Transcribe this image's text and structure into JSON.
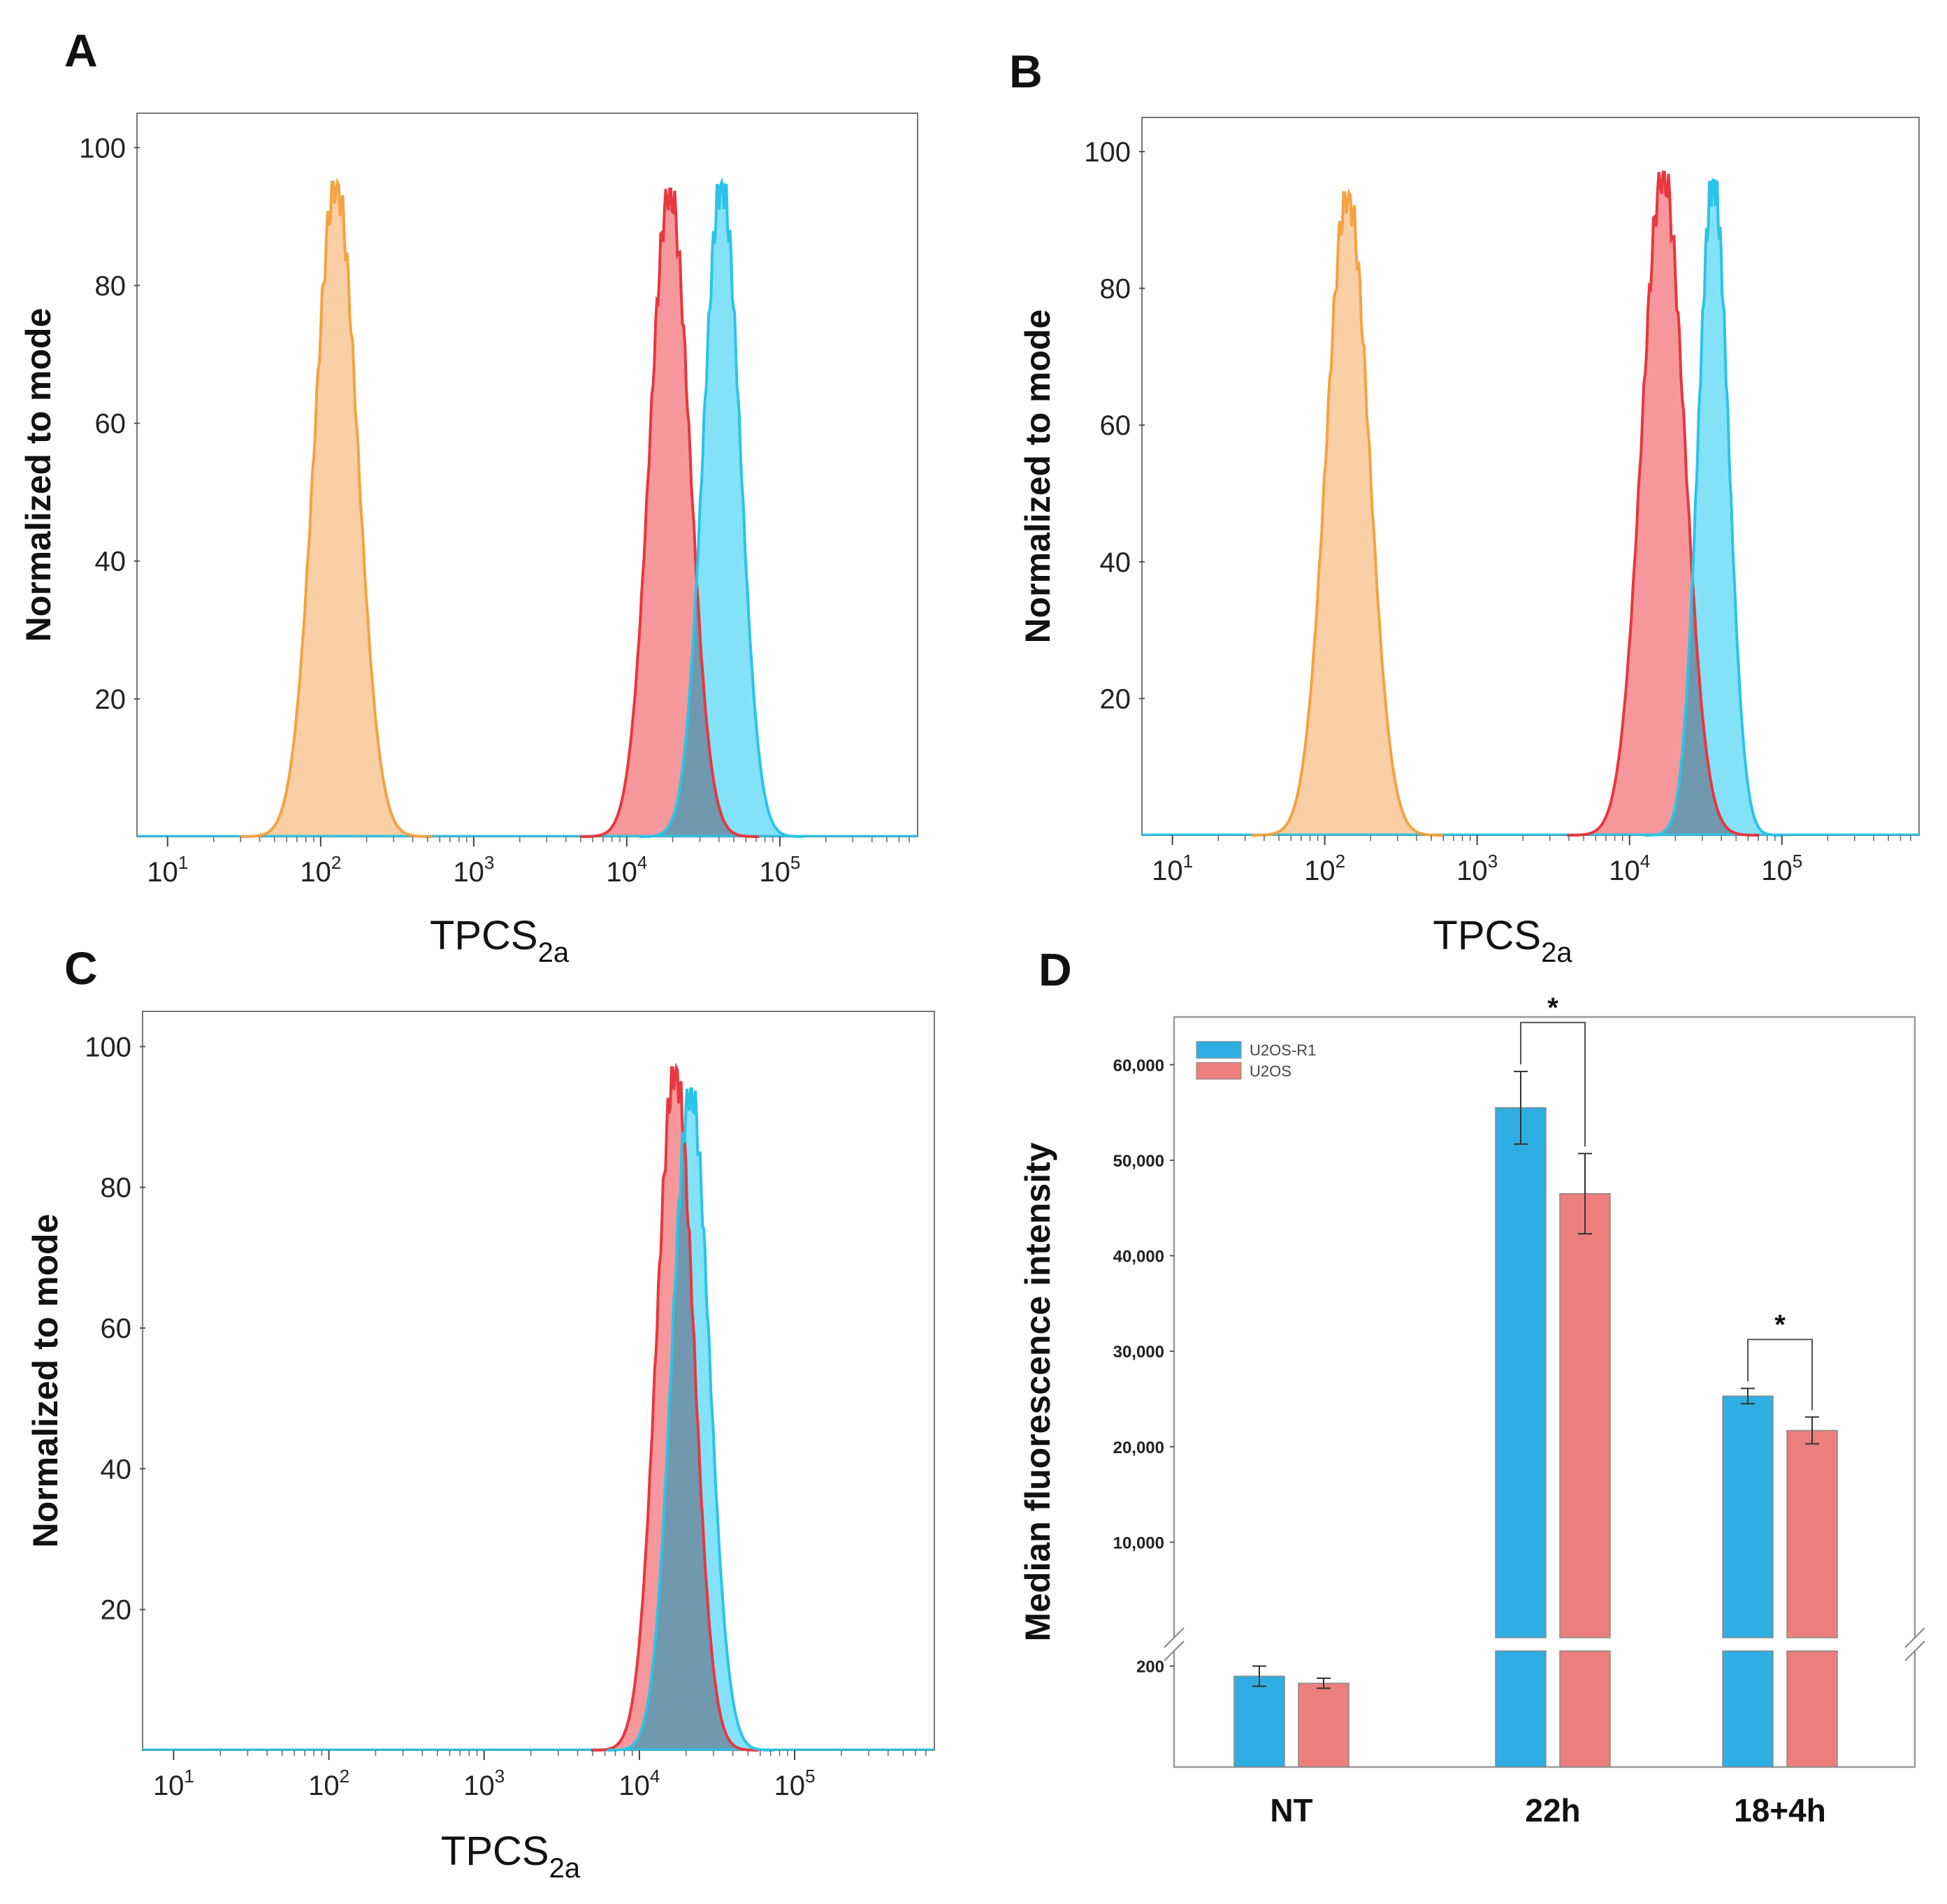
{
  "figure": {
    "panel_labels": [
      "A",
      "B",
      "C",
      "D"
    ]
  },
  "colors": {
    "orange_line": "#F4A340",
    "orange_fill": "#FAC796",
    "red_line": "#E8373F",
    "red_fill": "#F4868A",
    "blue_line": "#2BC4E8",
    "blue_fill": "#6FDDF7",
    "overlap_fill": "#6F93A8",
    "bar_blue": "#2EAEE2",
    "bar_red": "#EC7F7C"
  },
  "chart_data": [
    {
      "panel": "A",
      "type": "area",
      "title": "",
      "xlabel": "TPCS",
      "xlabel_sub": "2a",
      "ylabel": "Normalized to mode",
      "xscale": "log10",
      "xlim_log10": [
        0.8,
        5.9
      ],
      "ylim": [
        0,
        105
      ],
      "x_tick_labels": [
        {
          "base": "10",
          "exp": "1"
        },
        {
          "base": "10",
          "exp": "2"
        },
        {
          "base": "10",
          "exp": "3"
        },
        {
          "base": "10",
          "exp": "4"
        },
        {
          "base": "10",
          "exp": "5"
        }
      ],
      "x_tick_log10": [
        1,
        2,
        3,
        4,
        5
      ],
      "y_tick_labels": [
        "100",
        "80",
        "60",
        "40",
        "20"
      ],
      "y_ticks": [
        100,
        80,
        60,
        40,
        20
      ],
      "series": [
        {
          "name": "orange",
          "color_key": "orange",
          "peak_log10": 2.1,
          "sd_log10": 0.14,
          "peak": 95
        },
        {
          "name": "red",
          "color_key": "red",
          "peak_log10": 4.28,
          "sd_log10": 0.13,
          "peak": 94
        },
        {
          "name": "blue",
          "color_key": "blue",
          "peak_log10": 4.62,
          "sd_log10": 0.12,
          "peak": 95
        }
      ]
    },
    {
      "panel": "B",
      "type": "area",
      "title": "",
      "xlabel": "TPCS",
      "xlabel_sub": "2a",
      "ylabel": "Normalized to mode",
      "xscale": "log10",
      "xlim_log10": [
        0.8,
        5.9
      ],
      "ylim": [
        0,
        105
      ],
      "x_tick_labels": [
        {
          "base": "10",
          "exp": "1"
        },
        {
          "base": "10",
          "exp": "2"
        },
        {
          "base": "10",
          "exp": "3"
        },
        {
          "base": "10",
          "exp": "4"
        },
        {
          "base": "10",
          "exp": "5"
        }
      ],
      "x_tick_log10": [
        1,
        2,
        3,
        4,
        5
      ],
      "y_tick_labels": [
        "100",
        "80",
        "60",
        "40",
        "20"
      ],
      "y_ticks": [
        100,
        80,
        60,
        40,
        20
      ],
      "series": [
        {
          "name": "orange",
          "color_key": "orange",
          "peak_log10": 2.15,
          "sd_log10": 0.14,
          "peak": 94
        },
        {
          "name": "red",
          "color_key": "red",
          "peak_log10": 4.22,
          "sd_log10": 0.14,
          "peak": 97
        },
        {
          "name": "blue",
          "color_key": "blue",
          "peak_log10": 4.55,
          "sd_log10": 0.1,
          "peak": 96
        }
      ]
    },
    {
      "panel": "C",
      "type": "area",
      "title": "",
      "xlabel": "TPCS",
      "xlabel_sub": "2a",
      "ylabel": "Normalized to mode",
      "xscale": "log10",
      "xlim_log10": [
        0.8,
        5.9
      ],
      "ylim": [
        0,
        105
      ],
      "x_tick_labels": [
        {
          "base": "10",
          "exp": "1"
        },
        {
          "base": "10",
          "exp": "2"
        },
        {
          "base": "10",
          "exp": "3"
        },
        {
          "base": "10",
          "exp": "4"
        },
        {
          "base": "10",
          "exp": "5"
        }
      ],
      "x_tick_log10": [
        1,
        2,
        3,
        4,
        5
      ],
      "y_tick_labels": [
        "100",
        "80",
        "60",
        "40",
        "20"
      ],
      "y_ticks": [
        100,
        80,
        60,
        40,
        20
      ],
      "series": [
        {
          "name": "red",
          "color_key": "red",
          "peak_log10": 4.23,
          "sd_log10": 0.12,
          "peak": 97
        },
        {
          "name": "blue",
          "color_key": "blue",
          "peak_log10": 4.33,
          "sd_log10": 0.12,
          "peak": 94
        }
      ]
    },
    {
      "panel": "D",
      "type": "bar",
      "title": "",
      "xlabel": "",
      "ylabel": "Median fluorescence intensity",
      "categories": [
        "NT",
        "22h",
        "18+4h"
      ],
      "series": [
        {
          "name": "U2OS-R1",
          "color_key": "bar_blue",
          "values": [
            190,
            55500,
            25300
          ],
          "err": [
            10,
            3800,
            800
          ]
        },
        {
          "name": "U2OS",
          "color_key": "bar_red",
          "values": [
            183,
            46500,
            21700
          ],
          "err": [
            5,
            4200,
            1400
          ]
        }
      ],
      "upper_ylim": [
        0,
        65000
      ],
      "upper_tick_labels": [
        "60,000",
        "50,000",
        "40,000",
        "30,000",
        "20,000",
        "10,000"
      ],
      "upper_ticks": [
        60000,
        50000,
        40000,
        30000,
        20000,
        10000
      ],
      "lower_ylim": [
        100,
        215
      ],
      "lower_tick_labels": [
        "200"
      ],
      "lower_ticks": [
        200
      ],
      "axis_break": true,
      "significance": [
        {
          "category": "22h",
          "label": "*"
        },
        {
          "category": "18+4h",
          "label": "*"
        }
      ],
      "legend_position": "top-left"
    }
  ]
}
